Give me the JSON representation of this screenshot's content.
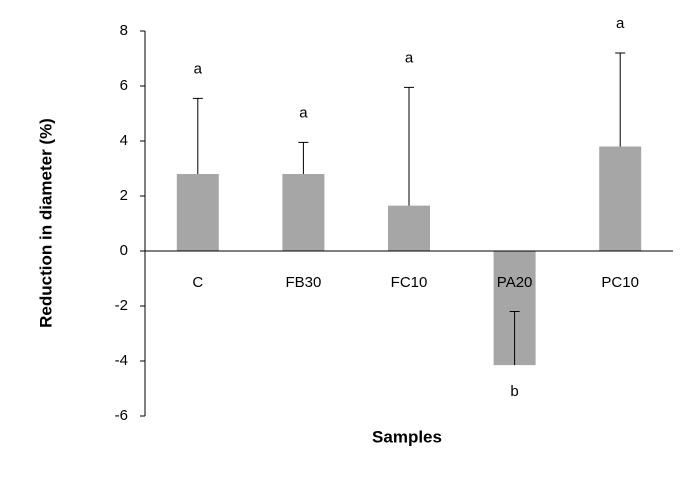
{
  "chart_data": {
    "type": "bar",
    "x_label": "Samples",
    "y_label": "Reduction in diameter (%)",
    "categories": [
      "C",
      "FB30",
      "FC10",
      "PA20",
      "PC10"
    ],
    "values": [
      2.8,
      2.8,
      1.65,
      -4.15,
      3.8
    ],
    "errors": [
      2.75,
      1.15,
      4.3,
      1.95,
      3.4
    ],
    "letters": [
      "a",
      "a",
      "a",
      "b",
      "a"
    ],
    "color": "#a6a6a6",
    "ylim": [
      -6,
      8
    ],
    "yticks": [
      -6,
      -4,
      -2,
      0,
      2,
      4,
      6,
      8
    ],
    "grid": false
  }
}
